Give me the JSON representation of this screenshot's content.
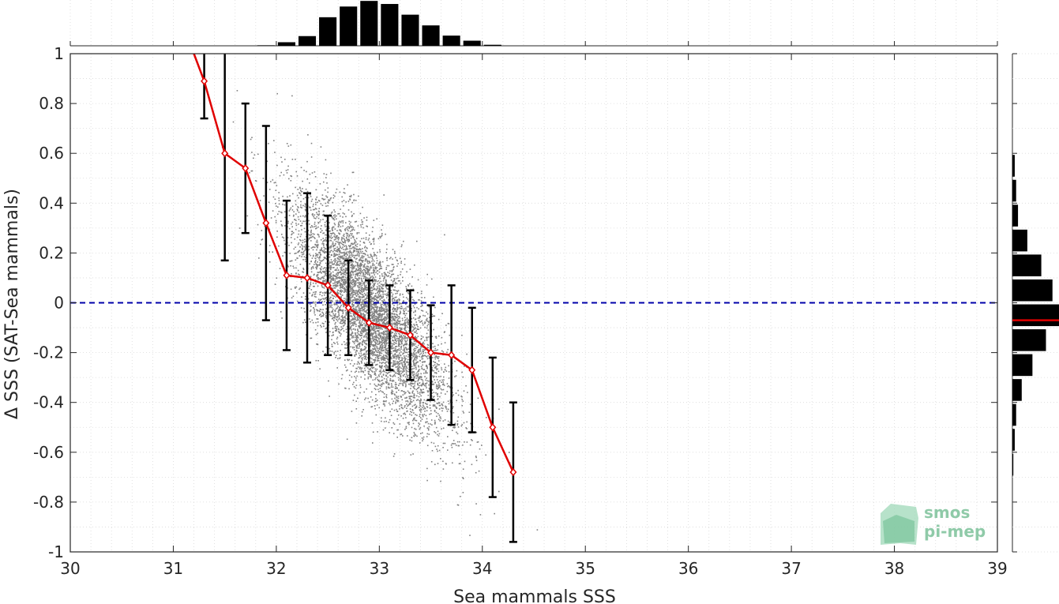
{
  "chart_data": {
    "type": "scatter",
    "xlabel": "Sea mammals SSS",
    "ylabel": "Δ SSS (SAT-Sea mammals)",
    "xlim": [
      30,
      39
    ],
    "ylim": [
      -1,
      1
    ],
    "xticks": [
      "30",
      "31",
      "32",
      "33",
      "34",
      "35",
      "36",
      "37",
      "38",
      "39"
    ],
    "yticks": [
      "1",
      "0.8",
      "0.6",
      "0.4",
      "0.2",
      "0",
      "-0.2",
      "-0.4",
      "-0.6",
      "-0.8",
      "-1"
    ],
    "grid": true,
    "zero_line": 0,
    "binned_mean": {
      "x": [
        31.3,
        31.5,
        31.7,
        31.9,
        32.1,
        32.3,
        32.5,
        32.7,
        32.9,
        33.1,
        33.3,
        33.5,
        33.7,
        33.9,
        34.1,
        34.3
      ],
      "y": [
        0.89,
        0.6,
        0.54,
        0.32,
        0.11,
        0.1,
        0.07,
        -0.02,
        -0.08,
        -0.1,
        -0.13,
        -0.2,
        -0.21,
        -0.27,
        -0.5,
        -0.68
      ],
      "err": [
        0.15,
        0.43,
        0.26,
        0.39,
        0.3,
        0.34,
        0.28,
        0.19,
        0.17,
        0.17,
        0.18,
        0.19,
        0.28,
        0.25,
        0.28,
        0.28
      ],
      "line_start": [
        31.2,
        1.0
      ]
    },
    "scatter_cloud": {
      "description_points": "gray point cloud of matchups",
      "center_x": 32.9,
      "center_y": -0.04,
      "n": 6000
    },
    "top_histogram": {
      "bin_centers": [
        31.9,
        32.1,
        32.3,
        32.5,
        32.7,
        32.9,
        33.1,
        33.3,
        33.5,
        33.7,
        33.9,
        34.1
      ],
      "counts": [
        0.01,
        0.07,
        0.19,
        0.56,
        0.77,
        0.88,
        0.82,
        0.61,
        0.4,
        0.2,
        0.1,
        0.02
      ]
    },
    "right_histogram": {
      "bin_centers": [
        0.6,
        0.5,
        0.4,
        0.3,
        0.2,
        0.1,
        0.0,
        -0.1,
        -0.2,
        -0.3,
        -0.4,
        -0.5,
        -0.6,
        -0.7
      ],
      "counts": [
        0.0,
        0.05,
        0.08,
        0.12,
        0.32,
        0.62,
        0.86,
        1.0,
        0.72,
        0.43,
        0.2,
        0.08,
        0.05,
        0.02
      ],
      "mean_line": -0.07
    },
    "colors": {
      "mean_line": "#e00000",
      "zero_line": "#0000aa",
      "scatter": "#808080",
      "errorbar": "#000000",
      "histogram": "#000000"
    }
  },
  "logo": {
    "line1": "smos",
    "line2": "pi-mep"
  }
}
